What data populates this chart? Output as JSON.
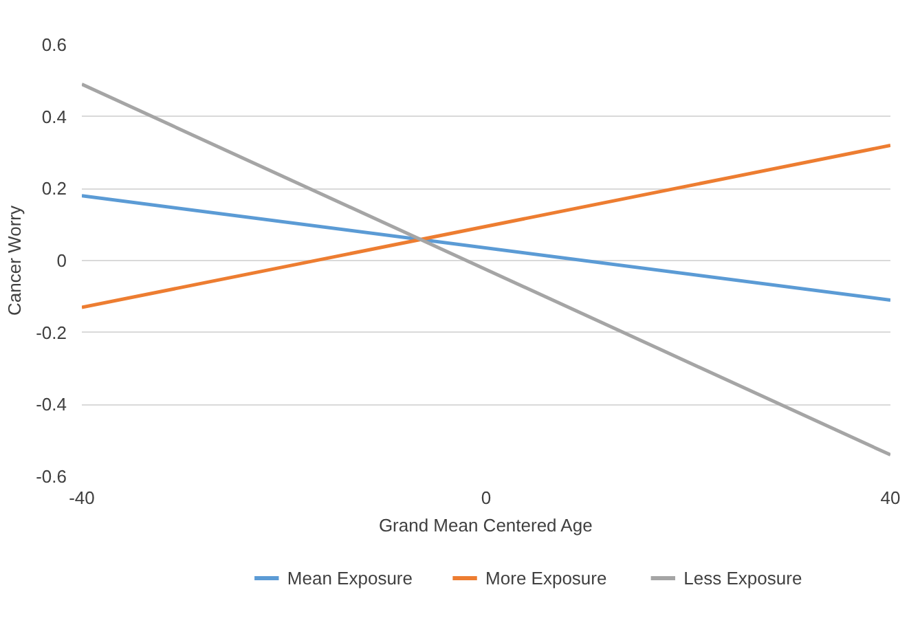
{
  "chart_data": {
    "type": "line",
    "xlabel": "Grand Mean Centered Age",
    "ylabel": "Cancer Worry",
    "x": [
      -40,
      40
    ],
    "series": [
      {
        "name": "Mean Exposure",
        "color": "#5b9bd5",
        "values": [
          0.18,
          -0.11
        ]
      },
      {
        "name": "More Exposure",
        "color": "#ed7d31",
        "values": [
          -0.13,
          0.32
        ]
      },
      {
        "name": "Less Exposure",
        "color": "#a5a5a5",
        "values": [
          0.49,
          -0.54
        ]
      }
    ],
    "xlim": [
      -40,
      40
    ],
    "xticks": [
      -40,
      0,
      40
    ],
    "ylim": [
      -0.6,
      0.6
    ],
    "yticks": [
      {
        "value": -0.6,
        "label": "-0.6"
      },
      {
        "value": -0.4,
        "label": "-0.4"
      },
      {
        "value": -0.2,
        "label": "-0.2"
      },
      0,
      {
        "value": 0.2,
        "label": "0.2"
      },
      {
        "value": 0.4,
        "label": "0.4"
      },
      {
        "value": 0.6,
        "label": "0.6"
      }
    ],
    "grid": "y",
    "legend": "bottom",
    "marker": "none",
    "line_style": "solid"
  }
}
